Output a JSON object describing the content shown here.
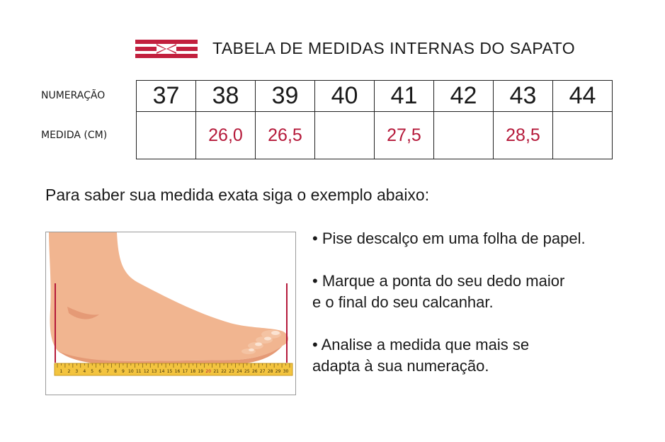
{
  "header": {
    "title": "TABELA DE MEDIDAS INTERNAS DO SAPATO",
    "logo_icon": "brand-logo-icon",
    "brand_color": "#c2203e"
  },
  "table": {
    "row_labels": {
      "size": "NUMERAÇÃO",
      "measure": "MEDIDA (CM)"
    },
    "sizes": [
      "37",
      "38",
      "39",
      "40",
      "41",
      "42",
      "43",
      "44"
    ],
    "measures": [
      "",
      "26,0",
      "26,5",
      "",
      "27,5",
      "",
      "28,5",
      ""
    ],
    "measure_color": "#b5193a"
  },
  "instruction": "Para saber sua medida exata siga o exemplo abaixo:",
  "illustration": {
    "icon": "foot-on-ruler-icon",
    "ruler_numbers": [
      "1",
      "2",
      "3",
      "4",
      "5",
      "6",
      "7",
      "8",
      "9",
      "10",
      "11",
      "12",
      "13",
      "14",
      "15",
      "16",
      "17",
      "18",
      "19",
      "20",
      "21",
      "22",
      "23",
      "24",
      "25",
      "26",
      "27",
      "28",
      "29",
      "30"
    ],
    "highlight_number": "20"
  },
  "steps": [
    {
      "lines": [
        "• Pise descalço em uma folha de papel."
      ]
    },
    {
      "lines": [
        "• Marque a ponta do seu dedo maior",
        "e o final do seu calcanhar."
      ]
    },
    {
      "lines": [
        "• Analise a medida que mais se",
        "adapta à sua numeração."
      ]
    }
  ]
}
